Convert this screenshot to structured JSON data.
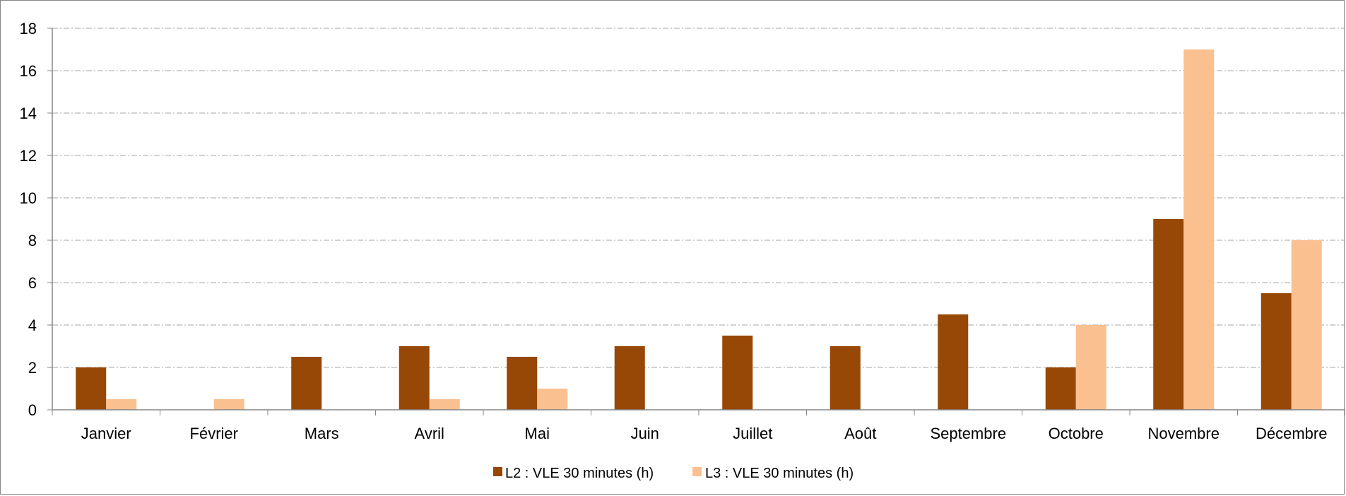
{
  "chart_data": {
    "type": "bar",
    "title": "",
    "xlabel": "",
    "ylabel": "",
    "ylim": [
      0,
      18
    ],
    "yticks": [
      0,
      2,
      4,
      6,
      8,
      10,
      12,
      14,
      16,
      18
    ],
    "grid": true,
    "legend_position": "bottom",
    "categories": [
      "Janvier",
      "Février",
      "Mars",
      "Avril",
      "Mai",
      "Juin",
      "Juillet",
      "Août",
      "Septembre",
      "Octobre",
      "Novembre",
      "Décembre"
    ],
    "series": [
      {
        "name": "L2 : VLE 30 minutes (h)",
        "color": "#974706",
        "values": [
          2,
          0,
          2.5,
          3,
          2.5,
          3,
          3.5,
          3,
          4.5,
          2,
          9,
          5.5
        ]
      },
      {
        "name": "L3 : VLE 30 minutes (h)",
        "color": "#FAC090",
        "values": [
          0.5,
          0.5,
          0,
          0.5,
          1,
          0,
          0,
          0,
          0,
          4,
          17,
          8
        ]
      }
    ]
  }
}
